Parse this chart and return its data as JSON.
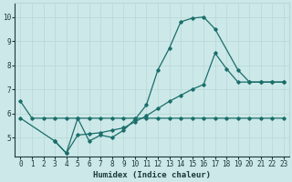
{
  "xlabel": "Humidex (Indice chaleur)",
  "bg_color": "#cce8e8",
  "grid_color": "#b8d8d8",
  "line_color": "#1a6e6a",
  "xlim": [
    -0.5,
    23.5
  ],
  "ylim": [
    4.2,
    10.6
  ],
  "xticks": [
    0,
    1,
    2,
    3,
    4,
    5,
    6,
    7,
    8,
    9,
    10,
    11,
    12,
    13,
    14,
    15,
    16,
    17,
    18,
    19,
    20,
    21,
    22,
    23
  ],
  "yticks": [
    5,
    6,
    7,
    8,
    9,
    10
  ],
  "line1_x": [
    0,
    1,
    2,
    3,
    4,
    5,
    6,
    7,
    8,
    9,
    10,
    11,
    12,
    13,
    14,
    15,
    16,
    17,
    18,
    19,
    20,
    21,
    22,
    23
  ],
  "line1_y": [
    6.5,
    5.8,
    5.8,
    5.8,
    5.8,
    5.8,
    5.8,
    5.8,
    5.8,
    5.8,
    5.8,
    5.8,
    5.8,
    5.8,
    5.8,
    5.8,
    5.8,
    5.8,
    5.8,
    5.8,
    5.8,
    5.8,
    5.8,
    5.8
  ],
  "line2_x": [
    3,
    4,
    5,
    6,
    7,
    8,
    9,
    10,
    11,
    12,
    13,
    14,
    15,
    16,
    17,
    19,
    20,
    21,
    22,
    23
  ],
  "line2_y": [
    4.85,
    4.35,
    5.8,
    4.85,
    5.1,
    5.0,
    5.3,
    5.75,
    6.35,
    7.8,
    8.7,
    9.8,
    9.95,
    10.0,
    9.5,
    7.8,
    7.3,
    7.3,
    7.3,
    7.3
  ],
  "line3_x": [
    0,
    3,
    4,
    5,
    6,
    7,
    8,
    9,
    10,
    11,
    12,
    13,
    14,
    15,
    16,
    17,
    18,
    19,
    20,
    21,
    22,
    23
  ],
  "line3_y": [
    5.8,
    4.85,
    4.35,
    5.1,
    5.15,
    5.2,
    5.3,
    5.4,
    5.65,
    5.9,
    6.2,
    6.5,
    6.75,
    7.0,
    7.2,
    8.5,
    7.85,
    7.3,
    7.3,
    7.3,
    7.3,
    7.3
  ]
}
